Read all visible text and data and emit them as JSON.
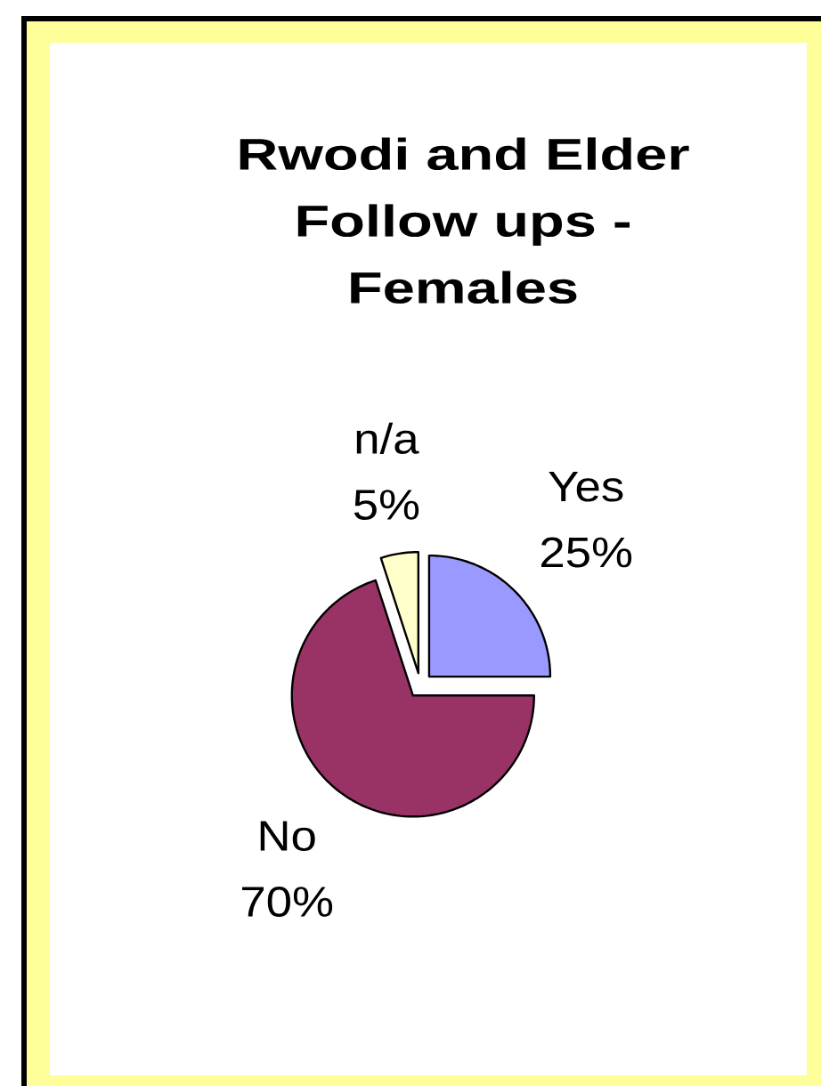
{
  "chart_data": {
    "type": "pie",
    "title": "Rwodi and Elder Follow ups - Females",
    "categories": [
      "Yes",
      "No",
      "n/a"
    ],
    "values": [
      25,
      70,
      5
    ],
    "colors": [
      "#9999ff",
      "#993366",
      "#ffffcc"
    ],
    "value_labels": [
      "25%",
      "70%",
      "5%"
    ]
  }
}
